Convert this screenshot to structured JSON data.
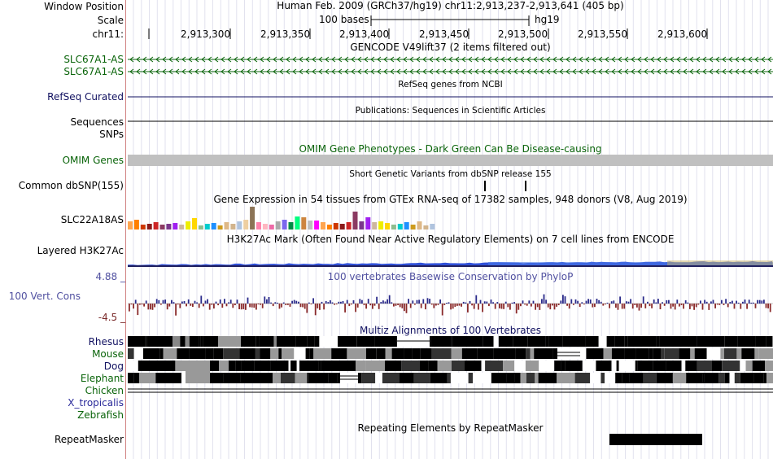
{
  "header": {
    "window_position_label": "Window Position",
    "window_position_value": "Human Feb. 2009 (GRCh37/hg19)   chr11:2,913,237-2,913,641 (405 bp)",
    "scale_label": "Scale",
    "scale_text": "100 bases",
    "scale_assembly": "hg19",
    "chrom_label": "chr11:",
    "ticks": [
      "2,913,300",
      "2,913,350",
      "2,913,400",
      "2,913,450",
      "2,913,500",
      "2,913,550",
      "2,913,600"
    ]
  },
  "tracks": {
    "gencode": {
      "title": "GENCODE V49lift37 (2 items filtered out)",
      "items": [
        "SLC67A1-AS",
        "SLC67A1-AS"
      ]
    },
    "refseq": {
      "title": "RefSeq genes from NCBI",
      "label": "RefSeq Curated"
    },
    "publications": {
      "title": "Publications: Sequences in Scientific Articles",
      "label": "Sequences"
    },
    "snps_label": "SNPs",
    "omim": {
      "title": "OMIM Gene Phenotypes - Dark Green Can Be Disease-causing",
      "label": "OMIM Genes"
    },
    "dbsnp": {
      "title": "Short Genetic Variants from dbSNP release 155",
      "label": "Common dbSNP(155)"
    },
    "gtex": {
      "title": "Gene Expression in 54 tissues from GTEx RNA-seq of 17382 samples, 948 donors (V8, Aug 2019)",
      "label": "SLC22A18AS"
    },
    "h3k27ac": {
      "title": "H3K27Ac Mark (Often Found Near Active Regulatory Elements) on 7 cell lines from ENCODE",
      "label": "Layered H3K27Ac"
    },
    "conservation": {
      "title": "100 vertebrates Basewise Conservation by PhyloP",
      "label": "100 Vert. Cons",
      "max_label": "4.88 _",
      "min_label": "-4.5 _"
    },
    "multiz": {
      "title": "Multiz Alignments of 100 Vertebrates",
      "species": [
        "Rhesus",
        "Mouse",
        "Dog",
        "Elephant",
        "Chicken",
        "X_tropicalis",
        "Zebrafish"
      ]
    },
    "repeatmasker": {
      "title": "Repeating Elements by RepeatMasker",
      "label": "RepeatMasker"
    }
  },
  "colors": {
    "gencode_green": "#0a640a",
    "refseq_navy": "#101060",
    "omim_gray": "#c0c0c0",
    "cons_positive": "#2a2a8a",
    "cons_negative": "#8a2a2a",
    "h3k27ac_blue": "#4060e0"
  }
}
